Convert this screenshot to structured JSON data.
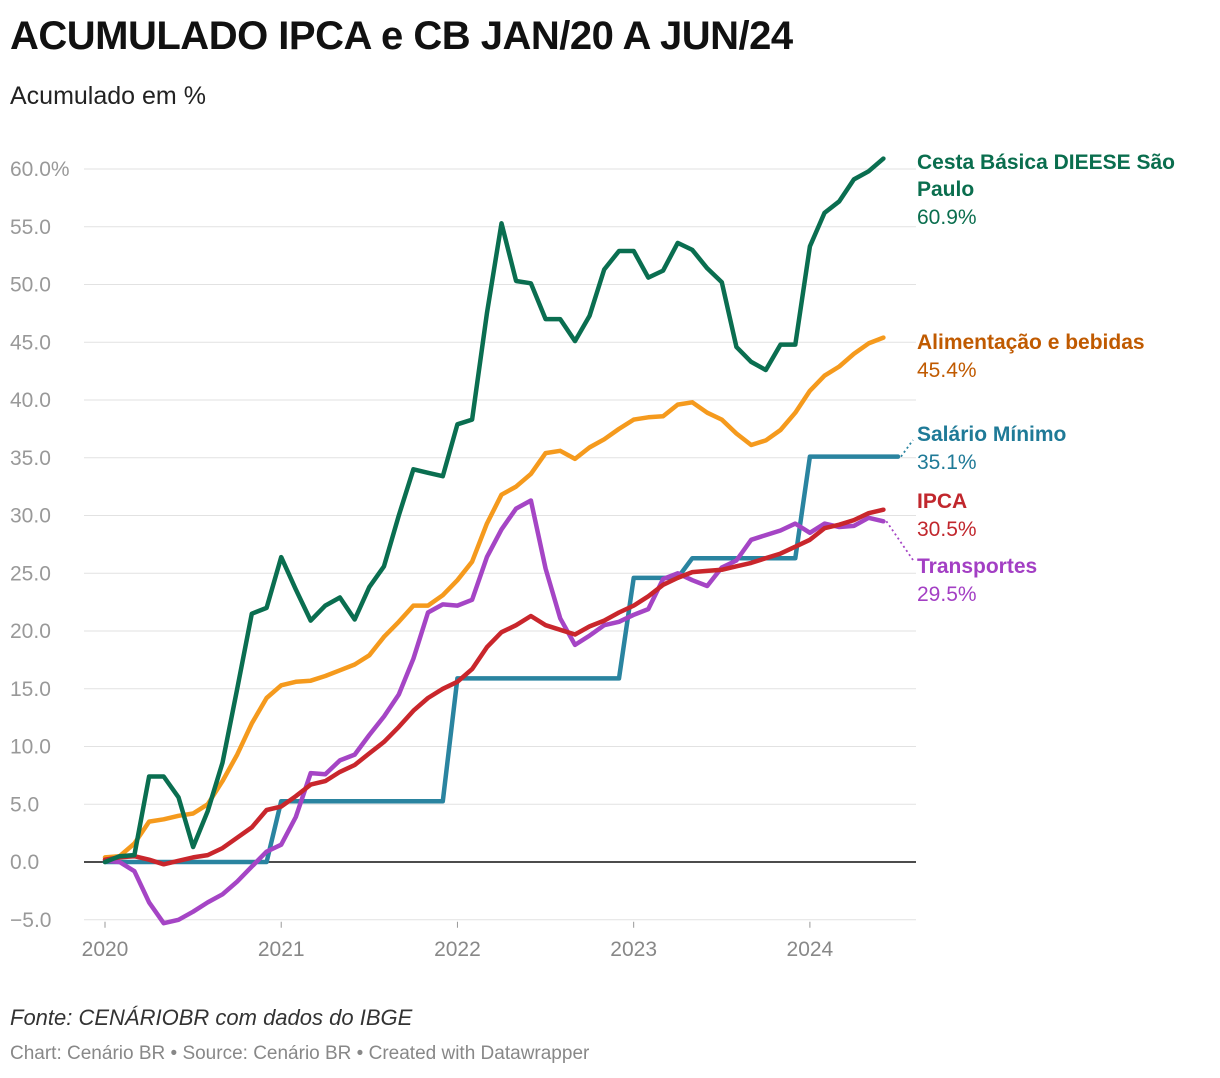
{
  "title": "ACUMULADO IPCA e CB JAN/20 A JUN/24",
  "subtitle": "Acumulado em %",
  "source": "Fonte: CENÁRIOBR com dados do IBGE",
  "credits": "Chart: Cenário BR • Source: Cenário BR • Created with Datawrapper",
  "chart_data": {
    "type": "line",
    "title": "ACUMULADO IPCA e CB JAN/20 A JUN/24",
    "ylabel": "Acumulado em %",
    "xlabel": "",
    "ylim": [
      -5.5,
      62
    ],
    "xlim": [
      2020.0,
      2024.5
    ],
    "y_ticks": [
      {
        "value": 60,
        "label": "60.0%"
      },
      {
        "value": 55,
        "label": "55.0"
      },
      {
        "value": 50,
        "label": "50.0"
      },
      {
        "value": 45,
        "label": "45.0"
      },
      {
        "value": 40,
        "label": "40.0"
      },
      {
        "value": 35,
        "label": "35.0"
      },
      {
        "value": 30,
        "label": "30.0"
      },
      {
        "value": 25,
        "label": "25.0"
      },
      {
        "value": 20,
        "label": "20.0"
      },
      {
        "value": 15,
        "label": "15.0"
      },
      {
        "value": 10,
        "label": "10.0"
      },
      {
        "value": 5,
        "label": "5.0"
      },
      {
        "value": 0,
        "label": "0.0"
      },
      {
        "value": -5,
        "label": "−5.0"
      }
    ],
    "x_ticks": [
      {
        "value": 2020,
        "label": "2020"
      },
      {
        "value": 2021,
        "label": "2021"
      },
      {
        "value": 2022,
        "label": "2022"
      },
      {
        "value": 2023,
        "label": "2023"
      },
      {
        "value": 2024,
        "label": "2024"
      }
    ],
    "series": [
      {
        "name": "Salário Mínimo",
        "line1": "Salário Mínimo",
        "line2": "",
        "final_label": "35.1%",
        "color": "#2a84a0",
        "label_color": "#1f7a97",
        "points": [
          [
            2020.0,
            0
          ],
          [
            2020.083,
            0
          ],
          [
            2020.25,
            0
          ],
          [
            2020.5,
            0
          ],
          [
            2020.75,
            0
          ],
          [
            2020.917,
            0
          ],
          [
            2021.0,
            5.26
          ],
          [
            2021.25,
            5.26
          ],
          [
            2021.5,
            5.26
          ],
          [
            2021.75,
            5.26
          ],
          [
            2021.917,
            5.26
          ],
          [
            2022.0,
            15.9
          ],
          [
            2022.5,
            15.9
          ],
          [
            2022.917,
            15.9
          ],
          [
            2023.0,
            24.6
          ],
          [
            2023.25,
            24.6
          ],
          [
            2023.333,
            26.3
          ],
          [
            2023.5,
            26.3
          ],
          [
            2023.75,
            26.3
          ],
          [
            2023.917,
            26.3
          ],
          [
            2024.0,
            35.1
          ],
          [
            2024.5,
            35.1
          ]
        ]
      },
      {
        "name": "Alimentação e bebidas",
        "line1": "Alimentação e bebidas",
        "line2": "",
        "final_label": "45.4%",
        "color": "#f59a1d",
        "label_color": "#c05a00",
        "points": [
          [
            2020.0,
            0.4
          ],
          [
            2020.083,
            0.5
          ],
          [
            2020.167,
            1.6
          ],
          [
            2020.25,
            3.5
          ],
          [
            2020.333,
            3.7
          ],
          [
            2020.417,
            4.0
          ],
          [
            2020.5,
            4.2
          ],
          [
            2020.583,
            5.0
          ],
          [
            2020.667,
            7.0
          ],
          [
            2020.75,
            9.3
          ],
          [
            2020.833,
            12.0
          ],
          [
            2020.917,
            14.2
          ],
          [
            2021.0,
            15.3
          ],
          [
            2021.083,
            15.6
          ],
          [
            2021.167,
            15.7
          ],
          [
            2021.25,
            16.1
          ],
          [
            2021.333,
            16.6
          ],
          [
            2021.417,
            17.1
          ],
          [
            2021.5,
            17.9
          ],
          [
            2021.583,
            19.5
          ],
          [
            2021.667,
            20.8
          ],
          [
            2021.75,
            22.2
          ],
          [
            2021.833,
            22.2
          ],
          [
            2021.917,
            23.1
          ],
          [
            2022.0,
            24.4
          ],
          [
            2022.083,
            26.0
          ],
          [
            2022.167,
            29.3
          ],
          [
            2022.25,
            31.8
          ],
          [
            2022.333,
            32.5
          ],
          [
            2022.417,
            33.6
          ],
          [
            2022.5,
            35.4
          ],
          [
            2022.583,
            35.6
          ],
          [
            2022.667,
            34.9
          ],
          [
            2022.75,
            35.9
          ],
          [
            2022.833,
            36.6
          ],
          [
            2022.917,
            37.5
          ],
          [
            2023.0,
            38.3
          ],
          [
            2023.083,
            38.5
          ],
          [
            2023.167,
            38.6
          ],
          [
            2023.25,
            39.6
          ],
          [
            2023.333,
            39.8
          ],
          [
            2023.417,
            38.9
          ],
          [
            2023.5,
            38.3
          ],
          [
            2023.583,
            37.1
          ],
          [
            2023.667,
            36.1
          ],
          [
            2023.75,
            36.5
          ],
          [
            2023.833,
            37.4
          ],
          [
            2023.917,
            38.9
          ],
          [
            2024.0,
            40.8
          ],
          [
            2024.083,
            42.1
          ],
          [
            2024.167,
            42.9
          ],
          [
            2024.25,
            44.0
          ],
          [
            2024.333,
            44.9
          ],
          [
            2024.417,
            45.4
          ]
        ]
      },
      {
        "name": "Transportes",
        "line1": "Transportes",
        "line2": "",
        "final_label": "29.5%",
        "color": "#a545c5",
        "label_color": "#a33fc4",
        "points": [
          [
            2020.0,
            0.1
          ],
          [
            2020.083,
            0.0
          ],
          [
            2020.167,
            -0.8
          ],
          [
            2020.25,
            -3.5
          ],
          [
            2020.333,
            -5.3
          ],
          [
            2020.417,
            -5.0
          ],
          [
            2020.5,
            -4.3
          ],
          [
            2020.583,
            -3.5
          ],
          [
            2020.667,
            -2.8
          ],
          [
            2020.75,
            -1.7
          ],
          [
            2020.833,
            -0.4
          ],
          [
            2020.917,
            0.9
          ],
          [
            2021.0,
            1.5
          ],
          [
            2021.083,
            3.9
          ],
          [
            2021.167,
            7.7
          ],
          [
            2021.25,
            7.6
          ],
          [
            2021.333,
            8.8
          ],
          [
            2021.417,
            9.3
          ],
          [
            2021.5,
            11.0
          ],
          [
            2021.583,
            12.6
          ],
          [
            2021.667,
            14.5
          ],
          [
            2021.75,
            17.6
          ],
          [
            2021.833,
            21.6
          ],
          [
            2021.917,
            22.3
          ],
          [
            2022.0,
            22.2
          ],
          [
            2022.083,
            22.7
          ],
          [
            2022.167,
            26.4
          ],
          [
            2022.25,
            28.8
          ],
          [
            2022.333,
            30.6
          ],
          [
            2022.417,
            31.3
          ],
          [
            2022.5,
            25.4
          ],
          [
            2022.583,
            21.1
          ],
          [
            2022.667,
            18.8
          ],
          [
            2022.75,
            19.6
          ],
          [
            2022.833,
            20.5
          ],
          [
            2022.917,
            20.8
          ],
          [
            2023.0,
            21.4
          ],
          [
            2023.083,
            21.9
          ],
          [
            2023.167,
            24.5
          ],
          [
            2023.25,
            25.0
          ],
          [
            2023.333,
            24.4
          ],
          [
            2023.417,
            23.9
          ],
          [
            2023.5,
            25.5
          ],
          [
            2023.583,
            26.1
          ],
          [
            2023.667,
            27.9
          ],
          [
            2023.75,
            28.3
          ],
          [
            2023.833,
            28.7
          ],
          [
            2023.917,
            29.3
          ],
          [
            2024.0,
            28.5
          ],
          [
            2024.083,
            29.3
          ],
          [
            2024.167,
            29.0
          ],
          [
            2024.25,
            29.1
          ],
          [
            2024.333,
            29.8
          ],
          [
            2024.417,
            29.5
          ]
        ]
      },
      {
        "name": "IPCA",
        "line1": "IPCA",
        "line2": "",
        "final_label": "30.5%",
        "color": "#c9262c",
        "label_color": "#c1272d",
        "points": [
          [
            2020.0,
            0.2
          ],
          [
            2020.083,
            0.4
          ],
          [
            2020.167,
            0.5
          ],
          [
            2020.25,
            0.2
          ],
          [
            2020.333,
            -0.2
          ],
          [
            2020.417,
            0.1
          ],
          [
            2020.5,
            0.4
          ],
          [
            2020.583,
            0.6
          ],
          [
            2020.667,
            1.2
          ],
          [
            2020.75,
            2.1
          ],
          [
            2020.833,
            3.0
          ],
          [
            2020.917,
            4.5
          ],
          [
            2021.0,
            4.8
          ],
          [
            2021.083,
            5.7
          ],
          [
            2021.167,
            6.7
          ],
          [
            2021.25,
            7.0
          ],
          [
            2021.333,
            7.8
          ],
          [
            2021.417,
            8.4
          ],
          [
            2021.5,
            9.4
          ],
          [
            2021.583,
            10.4
          ],
          [
            2021.667,
            11.7
          ],
          [
            2021.75,
            13.1
          ],
          [
            2021.833,
            14.2
          ],
          [
            2021.917,
            15.0
          ],
          [
            2022.0,
            15.6
          ],
          [
            2022.083,
            16.7
          ],
          [
            2022.167,
            18.6
          ],
          [
            2022.25,
            19.9
          ],
          [
            2022.333,
            20.5
          ],
          [
            2022.417,
            21.3
          ],
          [
            2022.5,
            20.5
          ],
          [
            2022.583,
            20.1
          ],
          [
            2022.667,
            19.7
          ],
          [
            2022.75,
            20.4
          ],
          [
            2022.833,
            20.9
          ],
          [
            2022.917,
            21.6
          ],
          [
            2023.0,
            22.2
          ],
          [
            2023.083,
            23.0
          ],
          [
            2023.167,
            24.0
          ],
          [
            2023.25,
            24.6
          ],
          [
            2023.333,
            25.1
          ],
          [
            2023.417,
            25.2
          ],
          [
            2023.5,
            25.3
          ],
          [
            2023.583,
            25.6
          ],
          [
            2023.667,
            25.9
          ],
          [
            2023.75,
            26.3
          ],
          [
            2023.833,
            26.7
          ],
          [
            2023.917,
            27.3
          ],
          [
            2024.0,
            27.9
          ],
          [
            2024.083,
            28.9
          ],
          [
            2024.167,
            29.2
          ],
          [
            2024.25,
            29.6
          ],
          [
            2024.333,
            30.2
          ],
          [
            2024.417,
            30.5
          ]
        ]
      },
      {
        "name": "Cesta Básica DIEESE São Paulo",
        "line1": "Cesta Básica DIEESE São",
        "line2": "Paulo",
        "final_label": "60.9%",
        "color": "#0a6e50",
        "label_color": "#0a6e4e",
        "points": [
          [
            2020.0,
            0.0
          ],
          [
            2020.083,
            0.5
          ],
          [
            2020.167,
            0.6
          ],
          [
            2020.25,
            7.4
          ],
          [
            2020.333,
            7.4
          ],
          [
            2020.417,
            5.6
          ],
          [
            2020.5,
            1.3
          ],
          [
            2020.583,
            4.4
          ],
          [
            2020.667,
            8.6
          ],
          [
            2020.75,
            15.0
          ],
          [
            2020.833,
            21.5
          ],
          [
            2020.917,
            22.0
          ],
          [
            2021.0,
            26.4
          ],
          [
            2021.083,
            23.6
          ],
          [
            2021.167,
            20.9
          ],
          [
            2021.25,
            22.2
          ],
          [
            2021.333,
            22.9
          ],
          [
            2021.417,
            21.0
          ],
          [
            2021.5,
            23.8
          ],
          [
            2021.583,
            25.6
          ],
          [
            2021.667,
            30.0
          ],
          [
            2021.75,
            34.0
          ],
          [
            2021.833,
            33.7
          ],
          [
            2021.917,
            33.4
          ],
          [
            2022.0,
            37.9
          ],
          [
            2022.083,
            38.3
          ],
          [
            2022.167,
            47.5
          ],
          [
            2022.25,
            55.3
          ],
          [
            2022.333,
            50.3
          ],
          [
            2022.417,
            50.1
          ],
          [
            2022.5,
            47.0
          ],
          [
            2022.583,
            47.0
          ],
          [
            2022.667,
            45.1
          ],
          [
            2022.75,
            47.3
          ],
          [
            2022.833,
            51.3
          ],
          [
            2022.917,
            52.9
          ],
          [
            2023.0,
            52.9
          ],
          [
            2023.083,
            50.6
          ],
          [
            2023.167,
            51.2
          ],
          [
            2023.25,
            53.6
          ],
          [
            2023.333,
            53.0
          ],
          [
            2023.417,
            51.4
          ],
          [
            2023.5,
            50.2
          ],
          [
            2023.583,
            44.6
          ],
          [
            2023.667,
            43.3
          ],
          [
            2023.75,
            42.6
          ],
          [
            2023.833,
            44.8
          ],
          [
            2023.917,
            44.8
          ],
          [
            2024.0,
            53.3
          ],
          [
            2024.083,
            56.2
          ],
          [
            2024.167,
            57.2
          ],
          [
            2024.25,
            59.1
          ],
          [
            2024.333,
            59.8
          ],
          [
            2024.417,
            60.9
          ]
        ]
      }
    ]
  }
}
